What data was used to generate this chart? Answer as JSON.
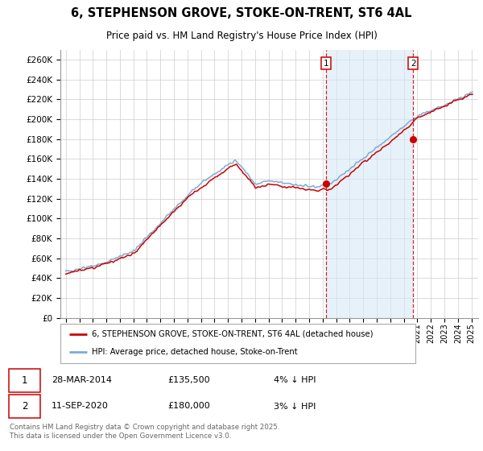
{
  "title": "6, STEPHENSON GROVE, STOKE-ON-TRENT, ST6 4AL",
  "subtitle": "Price paid vs. HM Land Registry's House Price Index (HPI)",
  "ylim": [
    0,
    270000
  ],
  "yticks": [
    0,
    20000,
    40000,
    60000,
    80000,
    100000,
    120000,
    140000,
    160000,
    180000,
    200000,
    220000,
    240000,
    260000
  ],
  "sale1_date": 2014.25,
  "sale1_price": 135500,
  "sale1_label": "1",
  "sale2_date": 2020.7,
  "sale2_price": 180000,
  "sale2_label": "2",
  "legend_line1": "6, STEPHENSON GROVE, STOKE-ON-TRENT, ST6 4AL (detached house)",
  "legend_line2": "HPI: Average price, detached house, Stoke-on-Trent",
  "ann1_date": "28-MAR-2014",
  "ann1_price": "£135,500",
  "ann1_pct": "4% ↓ HPI",
  "ann2_date": "11-SEP-2020",
  "ann2_price": "£180,000",
  "ann2_pct": "3% ↓ HPI",
  "footer": "Contains HM Land Registry data © Crown copyright and database right 2025.\nThis data is licensed under the Open Government Licence v3.0.",
  "line_color_red": "#cc0000",
  "line_color_blue": "#7aacd4",
  "shade_color": "#d6e8f5",
  "bg_color": "#ffffff",
  "grid_color": "#cccccc",
  "vline_color": "#cc0000"
}
